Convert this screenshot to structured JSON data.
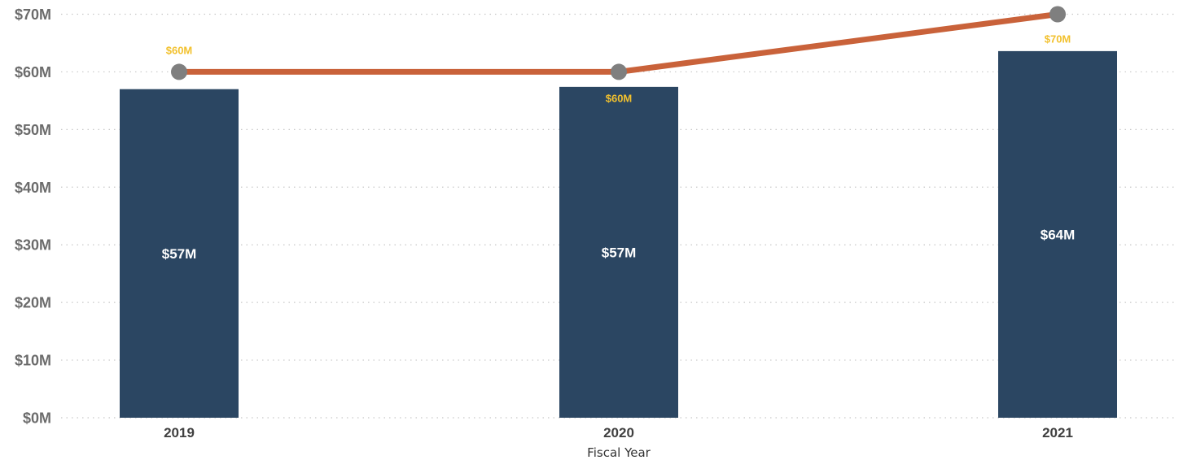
{
  "chart_data": {
    "type": "bar",
    "title": "",
    "xlabel": "Fiscal Year",
    "ylabel": "",
    "categories": [
      "2019",
      "2020",
      "2021"
    ],
    "ylim": [
      0,
      70
    ],
    "yticks": [
      0,
      10,
      20,
      30,
      40,
      50,
      60,
      70
    ],
    "ytick_labels": [
      "$0M",
      "$10M",
      "$20M",
      "$30M",
      "$40M",
      "$50M",
      "$60M",
      "$70M"
    ],
    "grid": true,
    "legend": "none",
    "series": [
      {
        "type": "bar",
        "values": [
          57,
          57.4,
          63.6
        ],
        "labels": [
          "$57M",
          "$57M",
          "$64M"
        ],
        "color": "#2b4662",
        "label_color": "#ffffff"
      },
      {
        "type": "line",
        "values": [
          60,
          60,
          70
        ],
        "labels": [
          "$60M",
          "$60M",
          "$70M"
        ],
        "color": "#c9623a",
        "marker_color": "#7f7f7f",
        "label_color": "#f2c12e"
      }
    ]
  }
}
